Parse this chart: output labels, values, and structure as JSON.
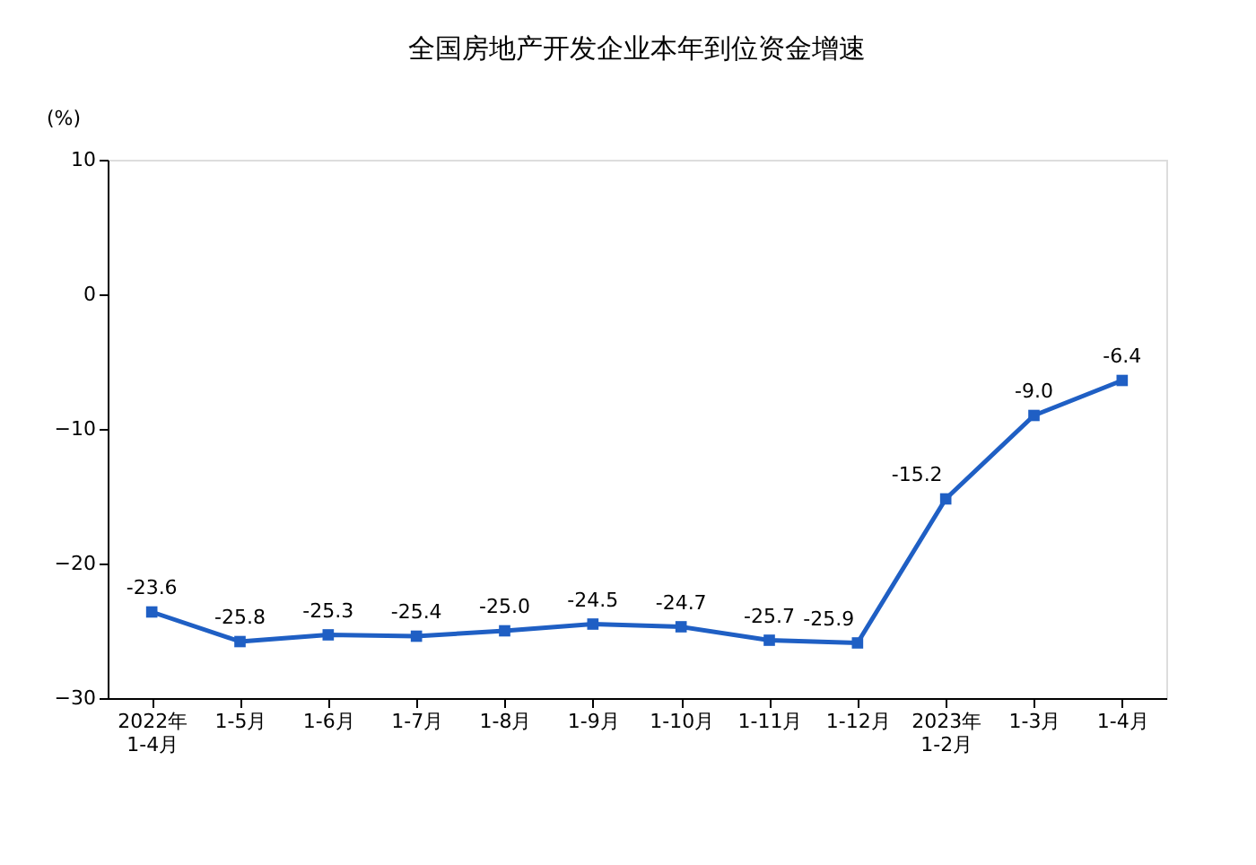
{
  "chart_data": {
    "type": "line",
    "title": "全国房地产开发企业本年到位资金增速",
    "ylabel": "(%)",
    "categories": [
      "2022年\n1-4月",
      "1-5月",
      "1-6月",
      "1-7月",
      "1-8月",
      "1-9月",
      "1-10月",
      "1-11月",
      "1-12月",
      "2023年\n1-2月",
      "1-3月",
      "1-4月"
    ],
    "series": [
      {
        "color": "#1f5fc4",
        "values": [
          -23.6,
          -25.8,
          -25.3,
          -25.4,
          -25.0,
          -24.5,
          -24.7,
          -25.7,
          -25.9,
          -15.2,
          -9.0,
          -6.4
        ],
        "value_labels": [
          "-23.6",
          "-25.8",
          "-25.3",
          "-25.4",
          "-25.0",
          "-24.5",
          "-24.7",
          "-25.7",
          "-25.9",
          "-15.2",
          "-9.0",
          "-6.4"
        ]
      }
    ],
    "ylim": [
      -30,
      10
    ],
    "yticks": [
      -30,
      -20,
      -10,
      0,
      10
    ],
    "grid": false,
    "marker": "square",
    "line_style": "solid"
  }
}
